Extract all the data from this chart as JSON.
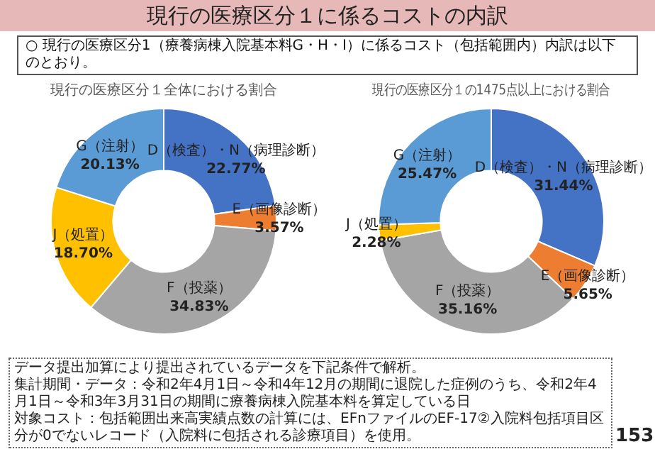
{
  "chart_data": [
    {
      "type": "other",
      "title": "現行の医療区分１に係るコストの内訳",
      "subtitle": "○ 現行の医療区分1（療養病棟入院基本料G・H・I）に係るコスト（包括範囲内）内訳は以下のとおり。",
      "annotations": [
        "データ提出加算により提出されているデータを下記条件で解析。",
        "集計期間・データ：令和2年4月1日～令和4年12月の期間に退院した症例のうち、令和2年4月1日～令和3年3月31日の期間に療養病棟入院基本料を算定している日",
        "対象コスト：包括範囲出来高実績点数の計算には、EFnファイルのEF-17②入院料包括項目区分が0でないレコード（入院料に包括される診療項目）を使用。",
        "153"
      ]
    },
    {
      "type": "donut",
      "title": "現行の医療区分１全体における割合",
      "categories": [
        "D（検査）・N（病理診断）",
        "E（画像診断）",
        "F（投薬）",
        "J（処置）",
        "G（注射）"
      ],
      "values": [
        22.77,
        3.57,
        34.83,
        18.7,
        20.13
      ],
      "colors": [
        "#4472c4",
        "#ed7d31",
        "#a5a5a5",
        "#ffc000",
        "#5b9bd5"
      ],
      "data_labels": true,
      "value_labels": [
        "22.77%",
        "3.57%",
        "34.83%",
        "18.70%",
        "20.13%"
      ]
    },
    {
      "type": "donut",
      "title": "現行の医療区分１の1475点以上における割合",
      "categories": [
        "D（検査）・N（病理診断）",
        "E（画像診断）",
        "F（投薬）",
        "J（処置）",
        "G（注射）"
      ],
      "values": [
        31.44,
        5.65,
        35.16,
        2.28,
        25.47
      ],
      "colors": [
        "#4472c4",
        "#ed7d31",
        "#a5a5a5",
        "#ffc000",
        "#5b9bd5"
      ],
      "data_labels": true,
      "value_labels": [
        "31.44%",
        "5.65%",
        "35.16%",
        "2.28%",
        "25.47%"
      ]
    }
  ]
}
